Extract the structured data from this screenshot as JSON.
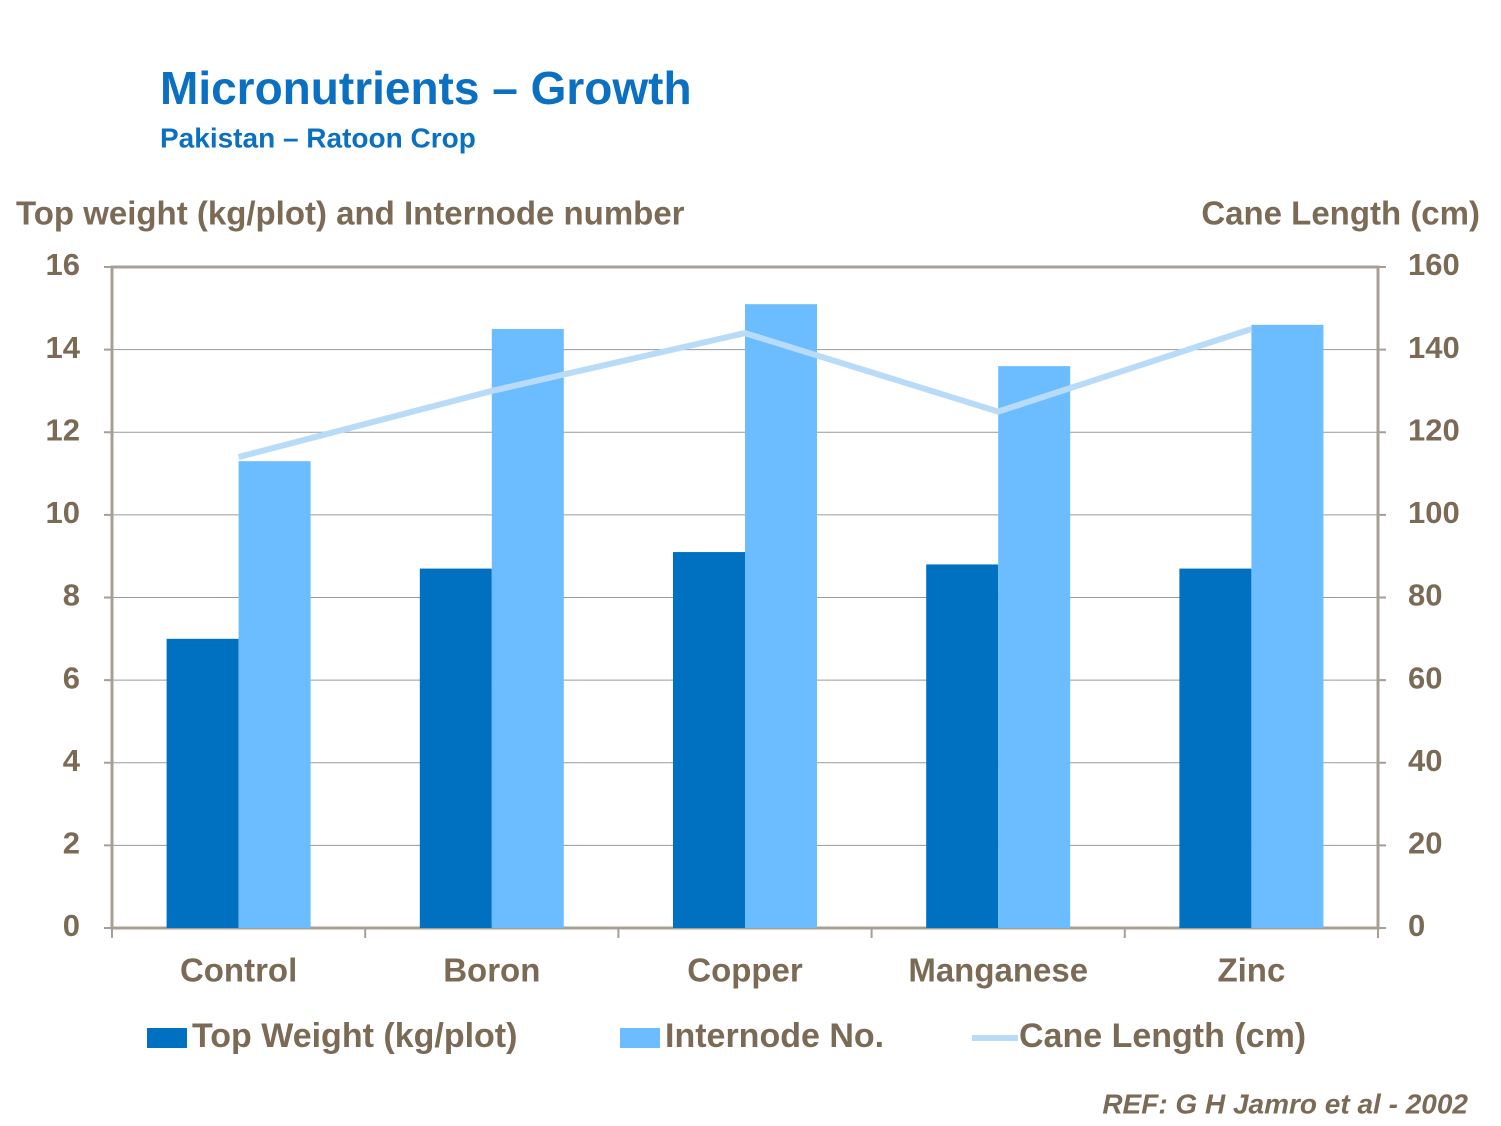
{
  "chart_data": {
    "type": "bar",
    "title": "Micronutrients – Growth",
    "subtitle": "Pakistan – Ratoon Crop",
    "y_label": "Top weight (kg/plot) and Internode number",
    "y2_label": "Cane Length (cm)",
    "reference": "REF: G H Jamro et al - 2002",
    "categories": [
      "Control",
      "Boron",
      "Copper",
      "Manganese",
      "Zinc"
    ],
    "series": [
      {
        "name": "Top Weight (kg/plot)",
        "type": "bar",
        "color": "#0070c0",
        "values": [
          7.0,
          8.7,
          9.1,
          8.8,
          8.7
        ]
      },
      {
        "name": "Internode No.",
        "type": "bar",
        "color": "#6bbdff",
        "values": [
          11.3,
          14.5,
          15.1,
          13.6,
          14.6
        ]
      },
      {
        "name": "Cane Length (cm)",
        "type": "line",
        "axis": "y2",
        "color": "#b8dcf8",
        "values": [
          114,
          130,
          144,
          125,
          145
        ]
      }
    ],
    "ylim": [
      0,
      16
    ],
    "yticks": [
      0,
      2,
      4,
      6,
      8,
      10,
      12,
      14,
      16
    ],
    "y2lim": [
      0,
      160
    ],
    "y2ticks": [
      0,
      20,
      40,
      60,
      80,
      100,
      120,
      140,
      160
    ],
    "grid": true,
    "legend": "bottom"
  }
}
